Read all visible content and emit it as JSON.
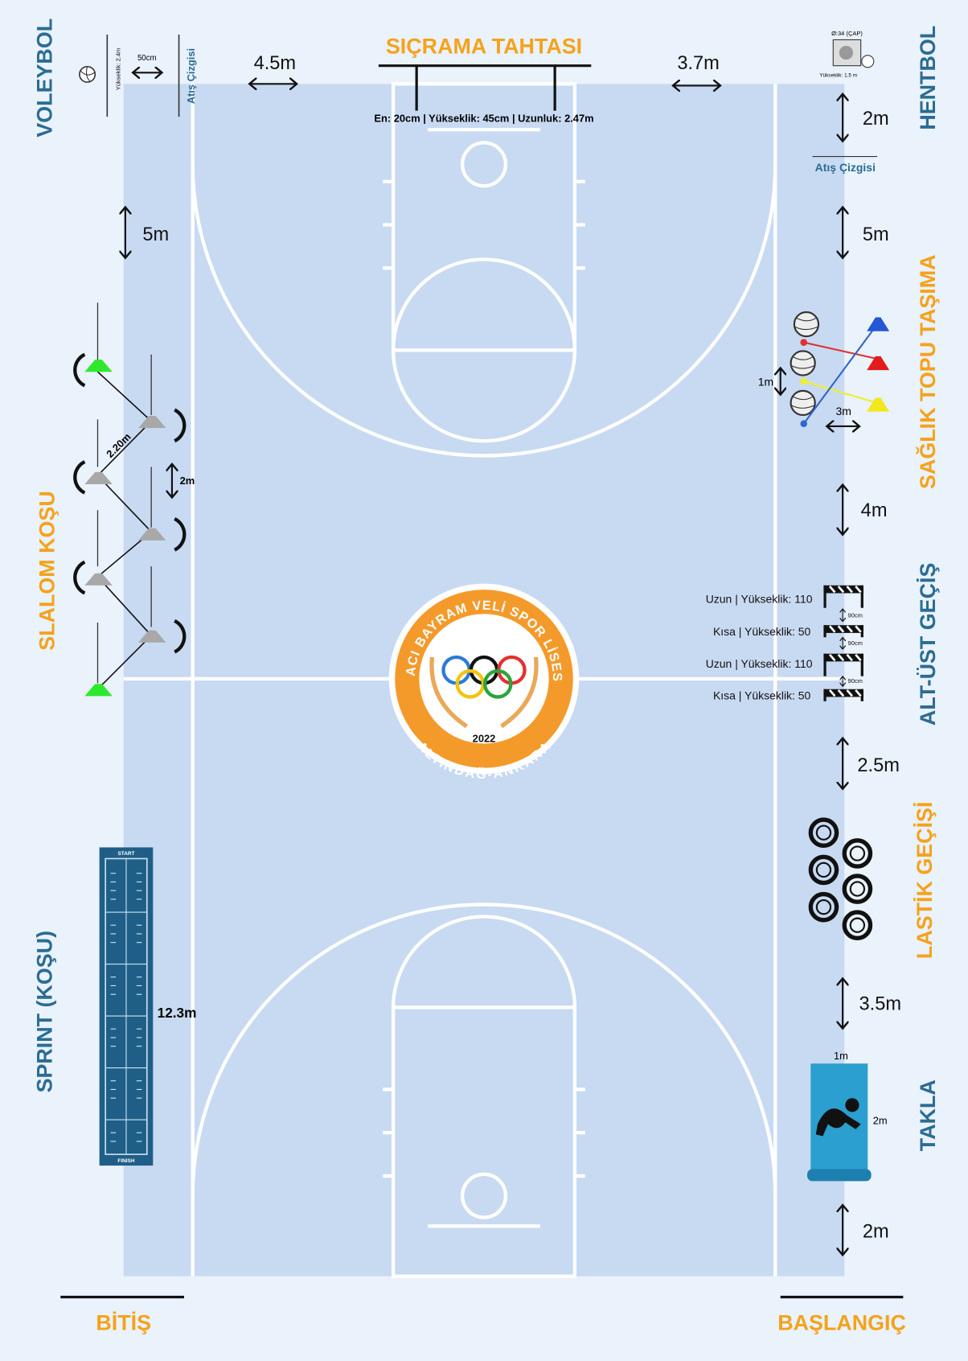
{
  "title": "SIÇRAMA TAHTASI",
  "board_spec": "En: 20cm | Yükseklik: 45cm | Uzunluk: 2.47m",
  "stations": {
    "voleybol": "VOLEYBOL",
    "hentbol": "HENTBOL",
    "slalom": "SLALOM KOŞU",
    "saglik_topu": "SAĞLIK TOPU TAŞIMA",
    "alt_ust": "ALT-ÜST GEÇİŞ",
    "lastik": "LASTİK GEÇİŞİ",
    "sprint": "SPRINT (KOŞU)",
    "takla": "TAKLA"
  },
  "finish": "BİTİŞ",
  "start": "BAŞLANGIÇ",
  "volleyball": {
    "height": "Yükseklik: 2.4m",
    "gap": "50cm",
    "line": "Atış Çizgisi"
  },
  "handball": {
    "diameter": "Ø:34 (ÇAP)",
    "height": "Yükseklik: 1.5 m",
    "line": "Atış Çizgisi"
  },
  "distances": {
    "left_top": "4.5m",
    "right_top": "3.7m",
    "hentbol_gap": "2m",
    "left_5m": "5m",
    "right_5m": "5m",
    "right_4m": "4m",
    "right_2_5m": "2.5m",
    "right_3_5m": "3.5m",
    "right_bottom_2m": "2m"
  },
  "slalom": {
    "diagonal": "2.20m",
    "gap": "2m"
  },
  "medicine_ball": {
    "gap": "1m",
    "distance": "3m"
  },
  "hurdles": [
    {
      "label": "Uzun | Yükseklik: 110"
    },
    {
      "label": "Kısa | Yükseklik: 50"
    },
    {
      "label": "Uzun | Yükseklik: 110"
    },
    {
      "label": "Kısa | Yükseklik: 50"
    }
  ],
  "hurdle_gap": [
    "90cm",
    "90cm",
    "90cm"
  ],
  "sprint": {
    "length": "12.3m",
    "start": "START",
    "finish": "FINISH"
  },
  "mat": {
    "width": "1m",
    "length": "2m"
  },
  "logo": {
    "top": "HACI BAYRAM VELİ SPOR LİSESİ",
    "bottom": "ALTINDAĞ-ANKARA",
    "year": "2022"
  }
}
